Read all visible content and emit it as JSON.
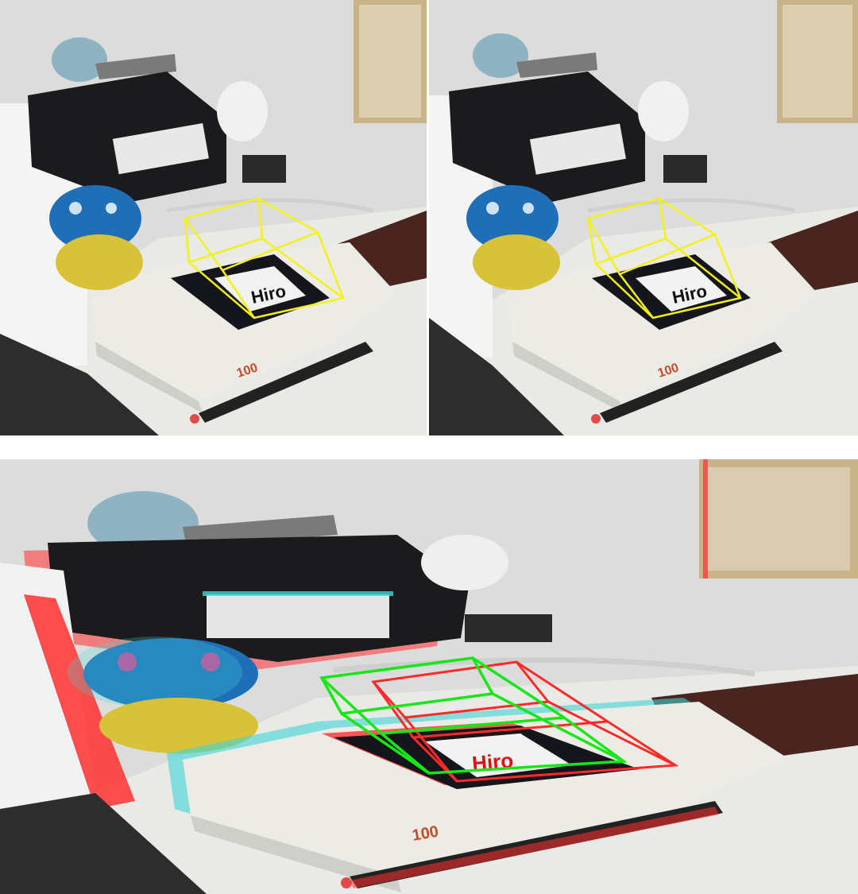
{
  "scene": {
    "marker_text": "Hiro",
    "book_text": "100",
    "colors": {
      "wall": "#dcdcdc",
      "desk": "#e9e9e6",
      "black_device": "#1b1b1d",
      "mushroom_cap": "#1f6fb8",
      "mushroom_stem": "#d8c23a",
      "marker_border": "#15151c",
      "marker_inner": "#f2f2f2",
      "book_cover": "#ecebe6",
      "wallet": "#4a2520",
      "poster": "#c9b48a",
      "pen": "#222222",
      "pen_tip": "#e24a4a",
      "cube_yellow": "#f2f21a",
      "cube_green": "#19e619",
      "cube_red": "#ff2a2a",
      "anaglyph_cyan": "#3fd6d6",
      "anaglyph_red": "#ff3030"
    }
  },
  "panels": {
    "top_left": {
      "view": "left-eye"
    },
    "top_right": {
      "view": "right-eye"
    },
    "bottom": {
      "view": "anaglyph"
    }
  }
}
